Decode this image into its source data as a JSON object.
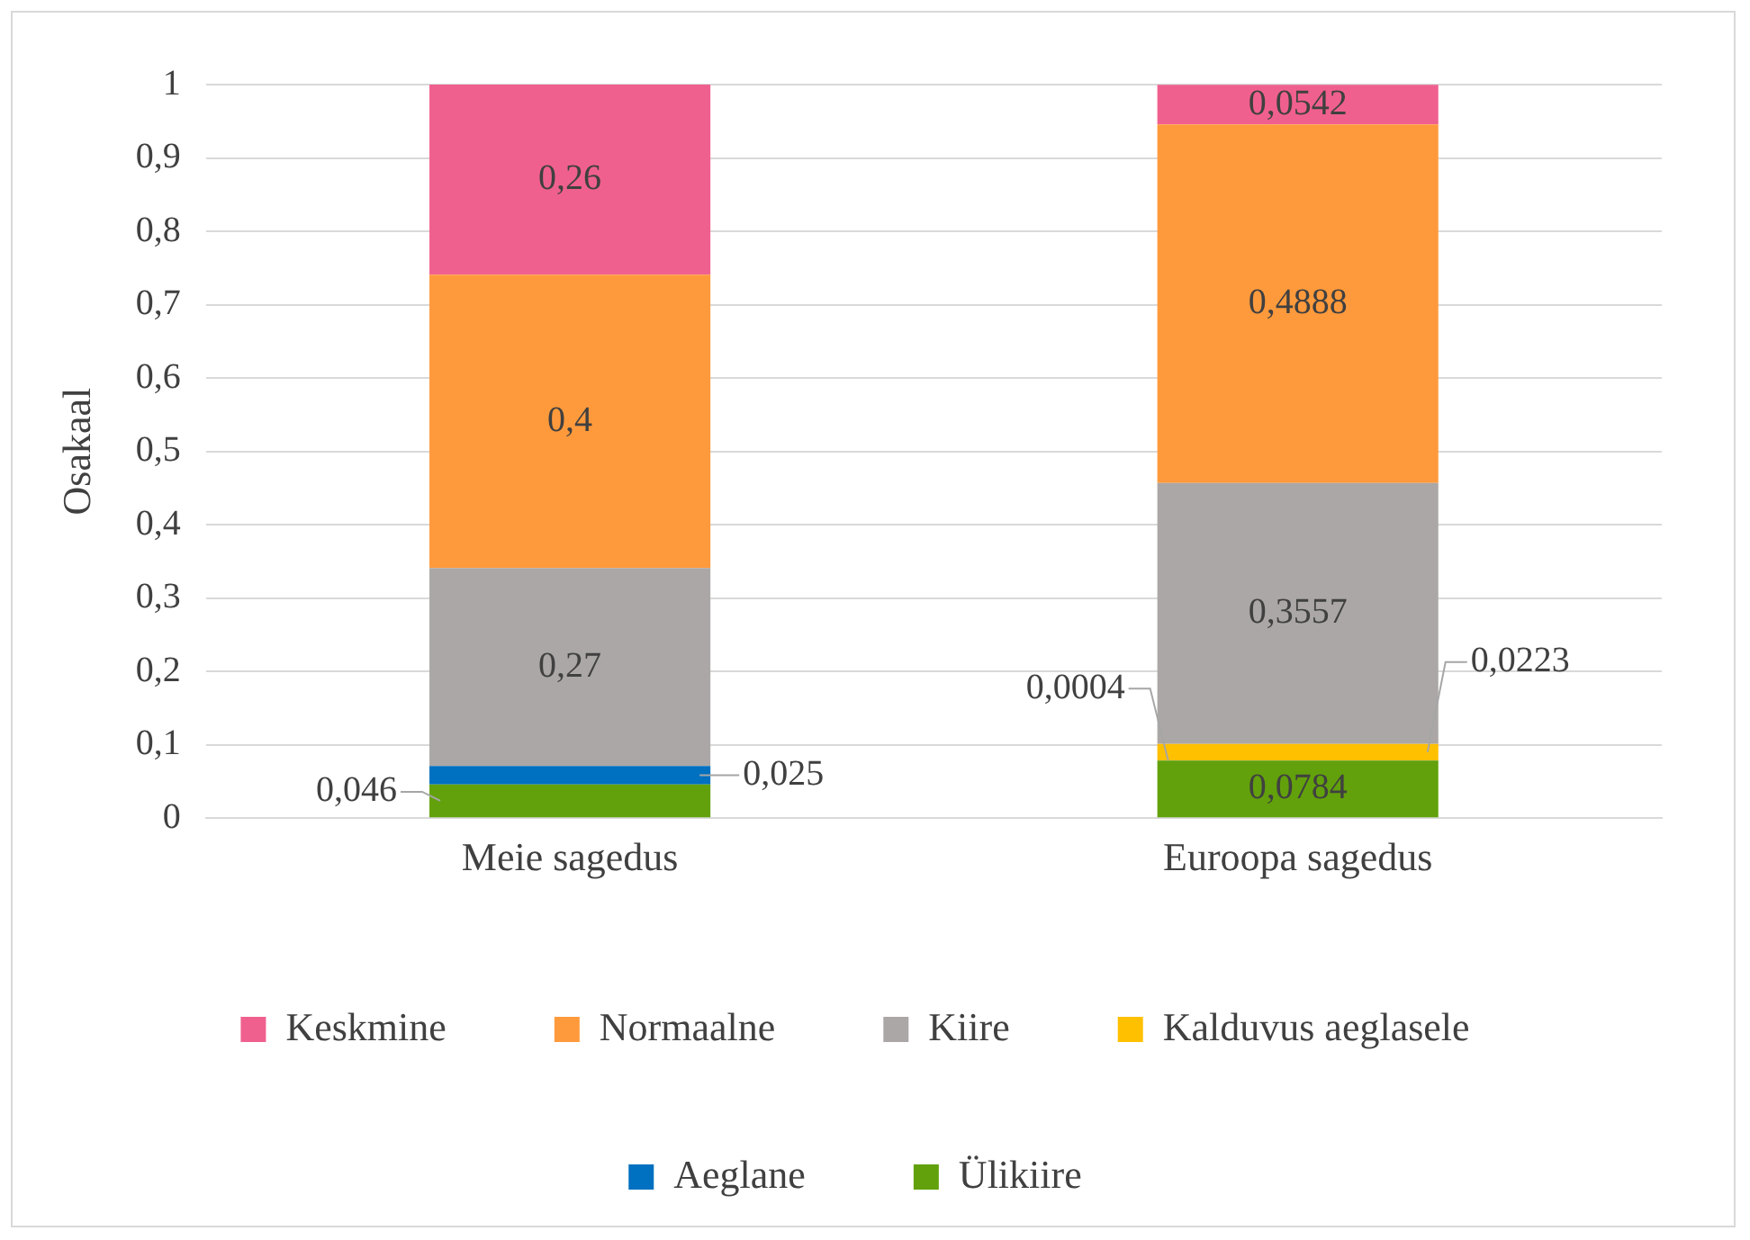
{
  "chart_data": {
    "type": "bar",
    "stacked": true,
    "ylabel": "Osakaal",
    "categories": [
      "Meie sagedus",
      "Euroopa sagedus"
    ],
    "series": [
      {
        "name": "Ülikiire",
        "color": "#62a10b",
        "values": [
          0.046,
          0.0784
        ],
        "value_labels": [
          "0,046",
          "0,0784"
        ]
      },
      {
        "name": "Aeglane",
        "color": "#0070c0",
        "values": [
          0.025,
          0.0004
        ],
        "value_labels": [
          "0,025",
          "0,0004"
        ]
      },
      {
        "name": "Kalduvus aeglasele",
        "color": "#ffc000",
        "values": [
          null,
          0.0223
        ],
        "value_labels": [
          null,
          "0,0223"
        ]
      },
      {
        "name": "Kiire",
        "color": "#aba7a6",
        "values": [
          0.27,
          0.3557
        ],
        "value_labels": [
          "0,27",
          "0,3557"
        ]
      },
      {
        "name": "Normaalne",
        "color": "#ff9a3c",
        "values": [
          0.4,
          0.4888
        ],
        "value_labels": [
          "0,4",
          "0,4888"
        ]
      },
      {
        "name": "Keskmine",
        "color": "#f0608f",
        "values": [
          0.26,
          0.0542
        ],
        "value_labels": [
          "0,26",
          "0,0542"
        ]
      }
    ],
    "ylim": [
      0,
      1
    ],
    "yticks": [
      0,
      {
        "value": 0.1,
        "label": "0,1"
      },
      {
        "value": 0.2,
        "label": "0,2"
      },
      {
        "value": 0.3,
        "label": "0,3"
      },
      {
        "value": 0.4,
        "label": "0,4"
      },
      {
        "value": 0.5,
        "label": "0,5"
      },
      {
        "value": 0.6,
        "label": "0,6"
      },
      {
        "value": 0.7,
        "label": "0,7"
      },
      {
        "value": 0.8,
        "label": "0,8"
      },
      {
        "value": 0.9,
        "label": "0,9"
      },
      1
    ],
    "grid": "y",
    "legend": "bottom"
  }
}
